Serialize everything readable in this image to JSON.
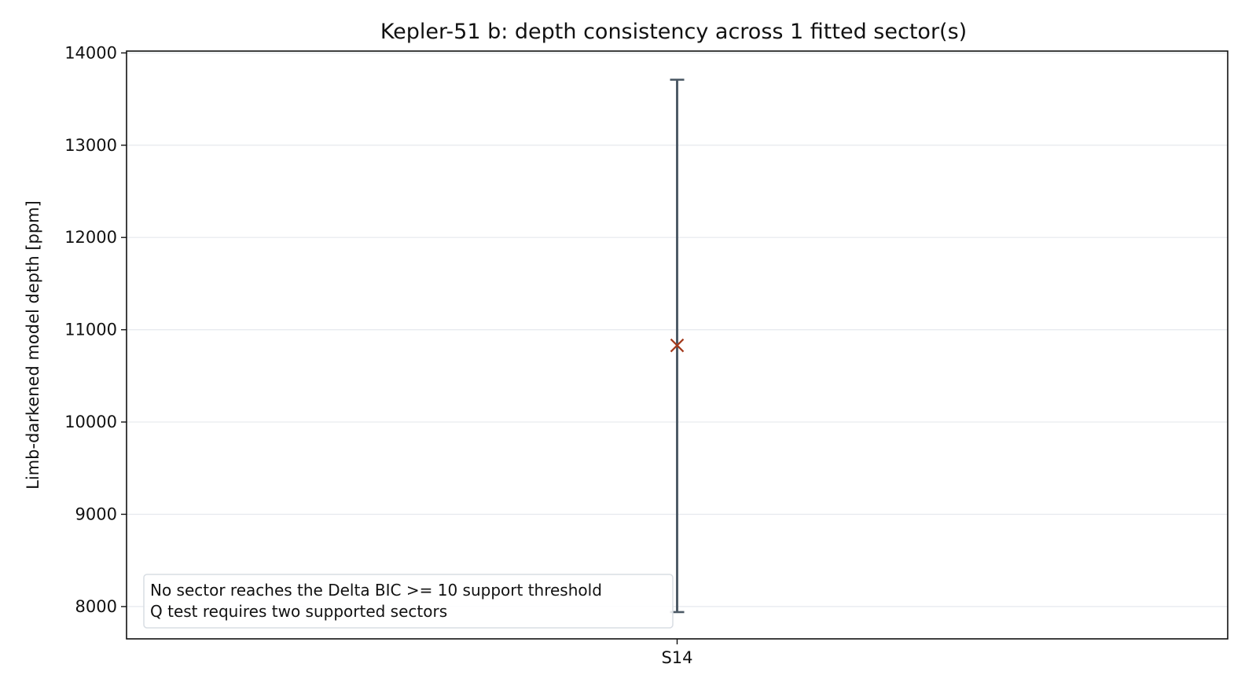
{
  "chart_data": {
    "type": "scatter",
    "title": "Kepler-51 b: depth consistency across 1 fitted sector(s)",
    "xlabel": "",
    "ylabel": "Limb-darkened model depth [ppm]",
    "categories": [
      "S14"
    ],
    "ylim": [
      7650,
      14020
    ],
    "yticks": [
      8000,
      9000,
      10000,
      11000,
      12000,
      13000,
      14000
    ],
    "grid": "horizontal",
    "points": [
      {
        "category": "S14",
        "y": 10830,
        "y_lower": 7940,
        "y_upper": 13710
      }
    ],
    "annotation": {
      "placement": "lower-left",
      "lines": [
        "No sector reaches the Delta BIC >= 10 support threshold",
        "Q test requires two supported sectors"
      ]
    },
    "colors": {
      "errorbar": "#4e5b67",
      "marker": "#a33a1c",
      "grid": "#e6e9ee",
      "axes": "#111111",
      "annotation_border": "#d8dde3"
    }
  }
}
